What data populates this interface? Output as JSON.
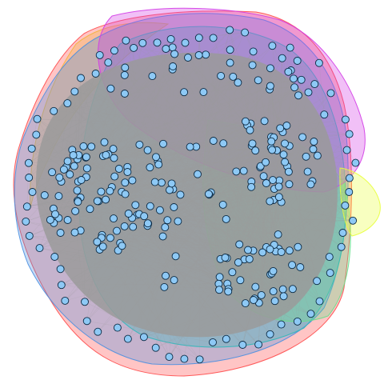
{
  "graph": {
    "node_fill": "#8ec9f5",
    "node_stroke": "#0b2a44",
    "edge_color": "#9a9a9a",
    "groups": [
      {
        "id": "red",
        "color": "#ff4a4a"
      },
      {
        "id": "orange",
        "color": "#f3b23c"
      },
      {
        "id": "blue",
        "color": "#4a8fe0"
      },
      {
        "id": "teal",
        "color": "#2fb7b9"
      },
      {
        "id": "green",
        "color": "#65e08c"
      },
      {
        "id": "magenta",
        "color": "#d23be6"
      },
      {
        "id": "yellow",
        "color": "#e8ff3a"
      }
    ]
  }
}
